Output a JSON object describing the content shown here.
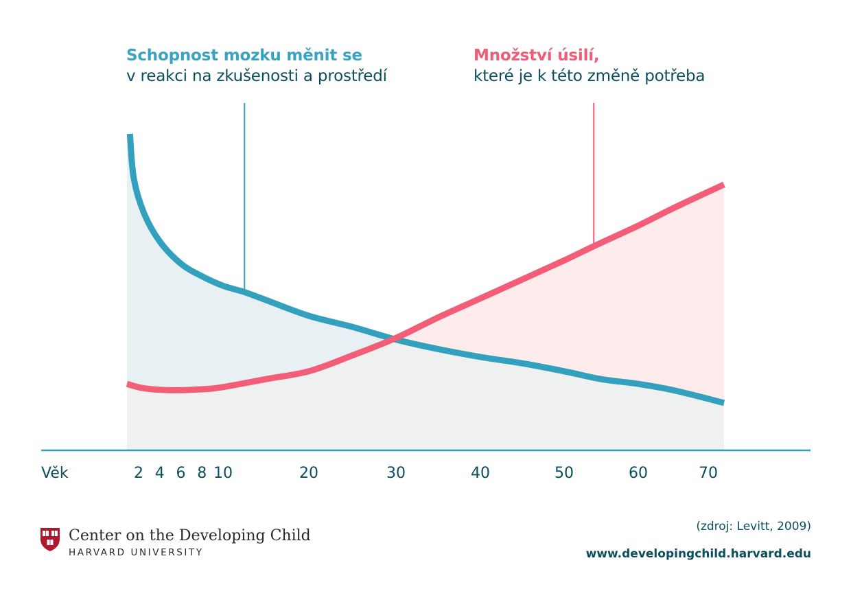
{
  "titles": {
    "left": {
      "highlight": "Schopnost mozku měnit se",
      "subtitle": "v reakci na zkušenosti a prostředí"
    },
    "right": {
      "highlight": "Množství úsilí,",
      "subtitle": "které je k této změně potřeba"
    }
  },
  "colors": {
    "plasticity": "#33a0bd",
    "effort": "#f25d78",
    "text_dark": "#0b4f5f",
    "plasticity_fill": "#e8f0f3",
    "effort_fill": "#fdeceb",
    "base_fill": "#eff0f0"
  },
  "chart_data": {
    "type": "line",
    "title": "Schopnost mozku měnit se v reakci na zkušenosti a prostředí / Množství úsilí, které je k této změně potřeba",
    "xlabel": "Věk",
    "ylabel": "",
    "x_ticks": [
      2,
      4,
      6,
      8,
      10,
      20,
      30,
      40,
      50,
      60,
      70
    ],
    "x_tick_labels": [
      "2",
      "4",
      "6",
      "8",
      "10",
      "20",
      "30",
      "40",
      "50",
      "60",
      "70"
    ],
    "xlim": [
      0.8,
      72
    ],
    "ylim": [
      0,
      100
    ],
    "y_axis_shown": false,
    "grid": false,
    "legend": "annotations-top",
    "series": [
      {
        "name": "Schopnost mozku měnit se v reakci na zkušenosti a prostředí",
        "color": "#33a0bd",
        "annotation_age": 12.5,
        "points": [
          [
            1.1,
            100
          ],
          [
            1.5,
            86
          ],
          [
            2.5,
            75
          ],
          [
            4,
            66
          ],
          [
            6,
            59
          ],
          [
            8,
            55
          ],
          [
            10,
            52
          ],
          [
            12.5,
            50
          ],
          [
            15,
            47.5
          ],
          [
            20,
            42.5
          ],
          [
            25,
            39
          ],
          [
            30,
            35
          ],
          [
            35,
            32
          ],
          [
            40,
            29.5
          ],
          [
            45,
            27.5
          ],
          [
            50,
            25
          ],
          [
            55,
            22.5
          ],
          [
            60,
            21
          ],
          [
            65,
            19
          ],
          [
            72,
            15
          ]
        ]
      },
      {
        "name": "Množství úsilí, které je k této změně potřeba",
        "color": "#f25d78",
        "annotation_age": 54,
        "points": [
          [
            0.8,
            21
          ],
          [
            2.5,
            19.6
          ],
          [
            5,
            19
          ],
          [
            8,
            19.3
          ],
          [
            10,
            20
          ],
          [
            15,
            22.5
          ],
          [
            20,
            25
          ],
          [
            25,
            30
          ],
          [
            30,
            35.5
          ],
          [
            35,
            42
          ],
          [
            40,
            48
          ],
          [
            45,
            54
          ],
          [
            50,
            60
          ],
          [
            54,
            64.5
          ],
          [
            60,
            71
          ],
          [
            65,
            76.5
          ],
          [
            72,
            84
          ]
        ]
      }
    ]
  },
  "footer": {
    "org_name": "Center on the Developing Child",
    "org_sub": "HARVARD UNIVERSITY",
    "source": "(zdroj: Levitt, 2009)",
    "url": "www.developingchild.harvard.edu"
  }
}
